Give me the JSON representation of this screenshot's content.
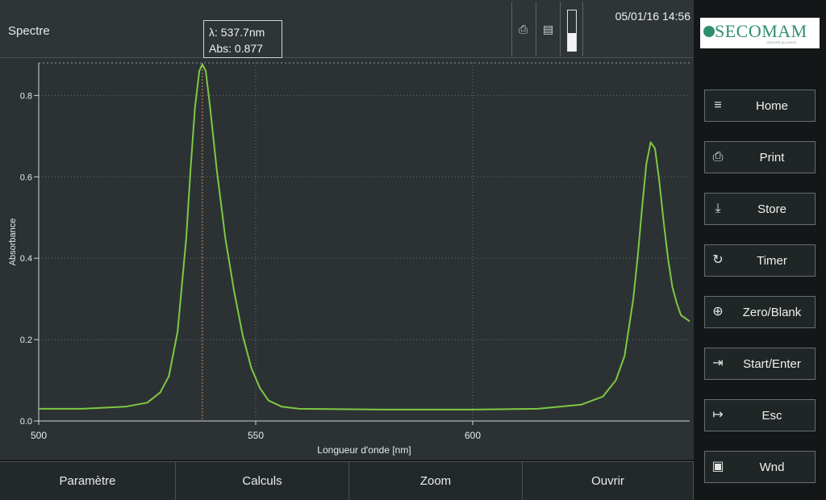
{
  "header": {
    "title": "Spectre",
    "cursor_readout": {
      "wavelength": "λ: 537.7nm",
      "absorbance": "Abs: 0.877"
    },
    "print_icon": "printer-icon",
    "store_icon": "floppy-disk-icon",
    "level_gauge_fraction": 0.45,
    "datetime": "05/01/16 14:56"
  },
  "logo": {
    "text": "SECOMAM",
    "tagline": "GROUPE ALLIANCE"
  },
  "side_buttons": [
    {
      "id": "home",
      "label": "Home",
      "icon": "list-icon"
    },
    {
      "id": "print",
      "label": "Print",
      "icon": "printer-icon"
    },
    {
      "id": "store",
      "label": "Store",
      "icon": "download-icon"
    },
    {
      "id": "timer",
      "label": "Timer",
      "icon": "timer-icon"
    },
    {
      "id": "zero",
      "label": "Zero/Blank",
      "icon": "target-icon"
    },
    {
      "id": "start",
      "label": "Start/Enter",
      "icon": "enter-icon"
    },
    {
      "id": "esc",
      "label": "Esc",
      "icon": "exit-icon"
    },
    {
      "id": "wnd",
      "label": "Wnd",
      "icon": "window-icon"
    }
  ],
  "bottom_tabs": [
    "Paramètre",
    "Calculs",
    "Zoom",
    "Ouvrir"
  ],
  "colors": {
    "trace": "#7dc843",
    "grid": "#6c7374",
    "cursor": "#d08a6a",
    "plot_bg": "#2c3233",
    "panel": "#2f3536"
  },
  "chart_data": {
    "type": "line",
    "xlabel": "Longueur d'onde [nm]",
    "ylabel": "Absorbance",
    "xlim": [
      500,
      650
    ],
    "ylim": [
      0,
      0.88
    ],
    "x_ticks": [
      500,
      550,
      600
    ],
    "x_tick_labels": [
      "500",
      "550",
      "600"
    ],
    "y_ticks": [
      0.0,
      0.2,
      0.4,
      0.6,
      0.8
    ],
    "y_tick_labels": [
      "0.0",
      "0.2",
      "0.4",
      "0.6",
      "0.8"
    ],
    "grid": true,
    "cursor": {
      "x": 537.7,
      "y": 0.877
    },
    "series": [
      {
        "x": [
          500,
          510,
          520,
          525,
          528,
          530,
          532,
          534,
          535,
          536,
          537,
          537.7,
          538.5,
          539.5,
          541,
          543,
          545,
          547,
          549,
          551,
          553,
          556,
          560,
          580,
          600,
          615,
          625,
          630,
          633,
          635,
          637,
          638,
          639,
          640,
          641,
          642,
          643,
          644,
          645,
          646,
          647,
          648,
          650
        ],
        "y": [
          0.03,
          0.03,
          0.035,
          0.045,
          0.07,
          0.11,
          0.22,
          0.45,
          0.62,
          0.77,
          0.86,
          0.877,
          0.86,
          0.77,
          0.62,
          0.45,
          0.32,
          0.21,
          0.13,
          0.08,
          0.05,
          0.035,
          0.03,
          0.028,
          0.028,
          0.03,
          0.04,
          0.06,
          0.1,
          0.16,
          0.3,
          0.4,
          0.52,
          0.63,
          0.685,
          0.67,
          0.59,
          0.49,
          0.4,
          0.33,
          0.29,
          0.26,
          0.245
        ]
      }
    ]
  }
}
